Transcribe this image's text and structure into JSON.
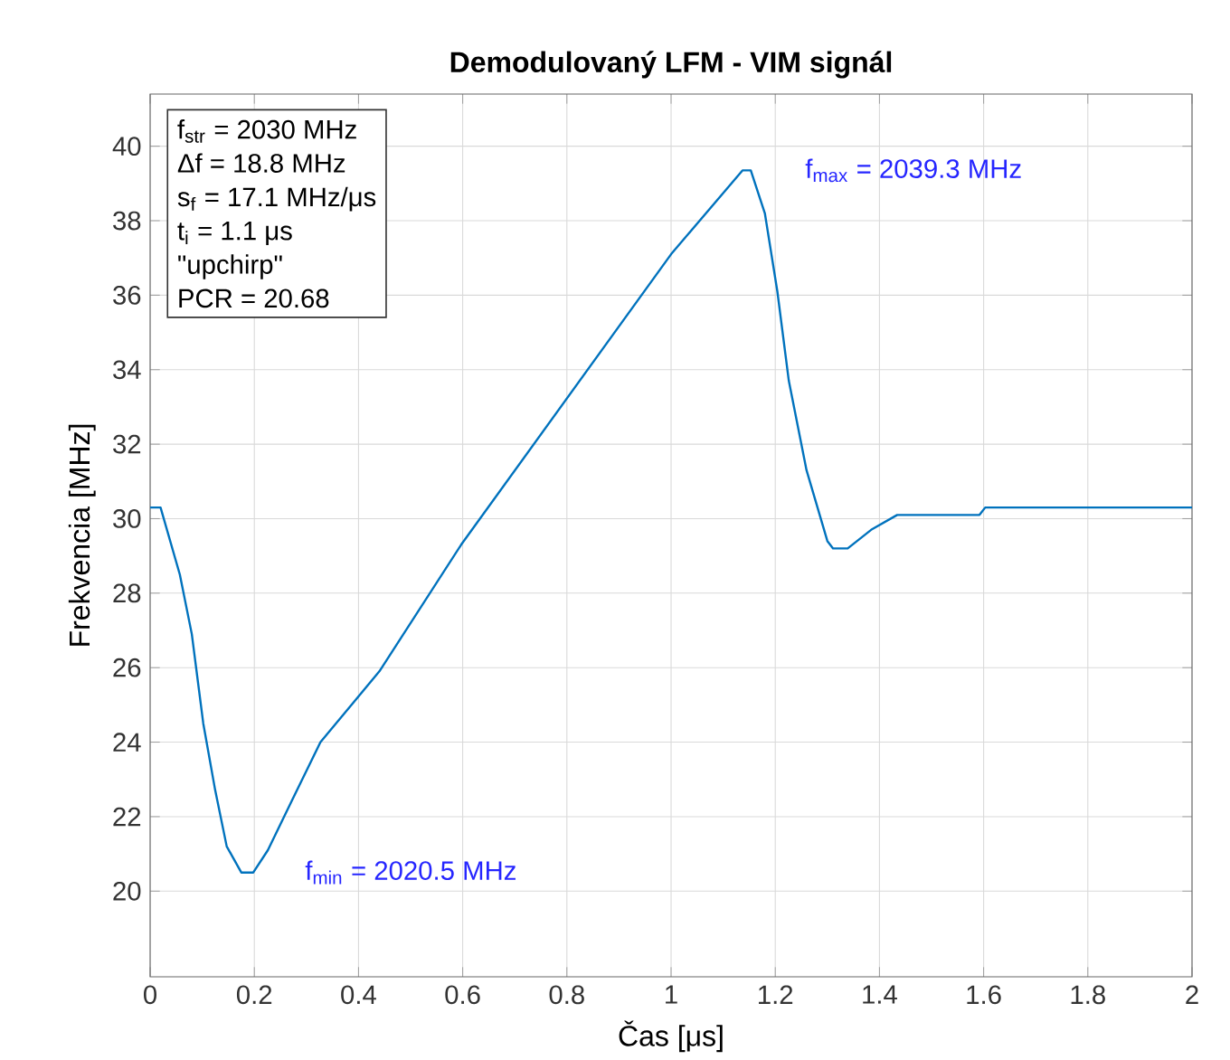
{
  "chart_data": {
    "type": "line",
    "title": "Demodulovaný LFM - VIM signál",
    "xlabel": "Čas [μs]",
    "ylabel": "Frekvencia [MHz]",
    "x": [
      0,
      0.02,
      0.057,
      0.08,
      0.102,
      0.125,
      0.147,
      0.175,
      0.198,
      0.226,
      0.271,
      0.327,
      0.44,
      0.597,
      1.0,
      1.137,
      1.153,
      1.18,
      1.204,
      1.226,
      1.26,
      1.3,
      1.311,
      1.339,
      1.384,
      1.434,
      1.592,
      1.603,
      2.0
    ],
    "series": [
      {
        "color": "#0072bd",
        "values": [
          30.3,
          30.3,
          28.5,
          26.9,
          24.5,
          22.7,
          21.2,
          20.5,
          20.5,
          21.1,
          22.4,
          24.0,
          25.9,
          29.3,
          37.1,
          39.35,
          39.35,
          38.2,
          36.1,
          33.7,
          31.3,
          29.4,
          29.2,
          29.2,
          29.7,
          30.1,
          30.1,
          30.3,
          30.3
        ]
      }
    ],
    "xlim": [
      0,
      2
    ],
    "ylim": [
      17.7,
      41.4
    ],
    "xticks": [
      0,
      0.2,
      0.4,
      0.6,
      0.8,
      1,
      1.2,
      1.4,
      1.6,
      1.8,
      2
    ],
    "yticks": [
      20,
      22,
      24,
      26,
      28,
      30,
      32,
      34,
      36,
      38,
      40
    ],
    "grid": true,
    "annotations": [
      {
        "text": "f$_{min}$ = 2020.5 MHz",
        "x": 0.19,
        "y": 20.5
      },
      {
        "text": "f$_{max}$ = 2039.3 MHz",
        "x": 1.15,
        "y": 39.35
      },
      "f$_{str}$ = 2030 MHz",
      "Δf = 18.8 MHz",
      "s$_{f}$ = 17.1 MHz/μs",
      "t$_{i}$ = 1.1 μs",
      "\"upchirp\"",
      "PCR = 20.68"
    ]
  }
}
